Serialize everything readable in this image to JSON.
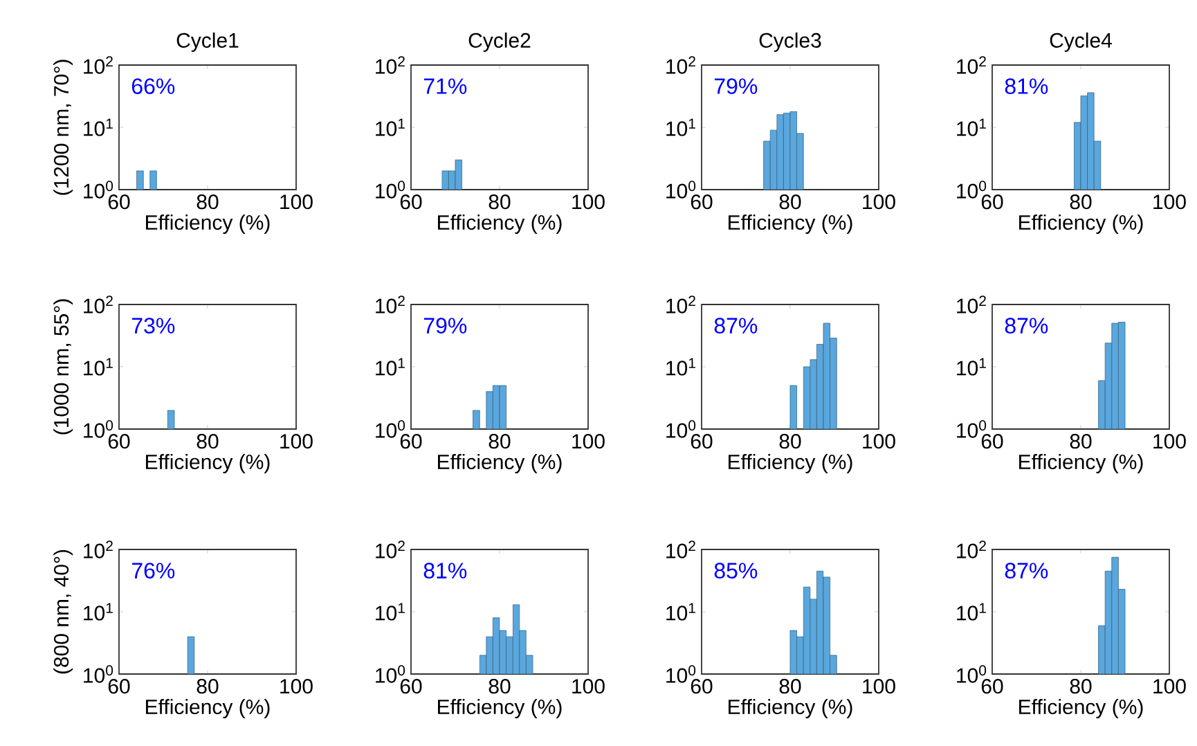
{
  "chart_data": [
    {
      "type": "histogram",
      "title": "Cycle1",
      "xlabel": "Efficiency (%)",
      "ylabel": "(1200 nm, 70°)",
      "annotations": [
        "66%"
      ],
      "bins": [
        64,
        65.5,
        67,
        68.5
      ],
      "values": [
        2,
        null,
        2
      ],
      "color": "#5aa7dd",
      "xlim": [
        60,
        100
      ],
      "xticks": [
        60,
        80,
        100
      ],
      "ylim": [
        1,
        100
      ],
      "yticks": [
        {
          "value": 1,
          "label": "10$^{0}$"
        },
        {
          "value": 10,
          "label": "10$^{1}$"
        },
        {
          "value": 100,
          "label": "10$^{2}$"
        }
      ],
      "log": true
    },
    {
      "type": "histogram",
      "title": "Cycle2",
      "xlabel": "Efficiency (%)",
      "annotations": [
        "71%"
      ],
      "bins": [
        67,
        68.5,
        70,
        71.5
      ],
      "values": [
        2,
        2,
        3
      ],
      "color": "#5aa7dd",
      "xlim": [
        60,
        100
      ],
      "xticks": [
        60,
        80,
        100
      ],
      "ylim": [
        1,
        100
      ],
      "yticks": [
        {
          "value": 1,
          "label": "10$^{0}$"
        },
        {
          "value": 10,
          "label": "10$^{1}$"
        },
        {
          "value": 100,
          "label": "10$^{2}$"
        }
      ],
      "log": true
    },
    {
      "type": "histogram",
      "title": "Cycle3",
      "xlabel": "Efficiency (%)",
      "annotations": [
        "79%"
      ],
      "bins": [
        74,
        75.5,
        77,
        78.5,
        80,
        81.5,
        83
      ],
      "values": [
        6,
        9,
        16,
        17,
        18,
        8
      ],
      "color": "#5aa7dd",
      "xlim": [
        60,
        100
      ],
      "xticks": [
        60,
        80,
        100
      ],
      "ylim": [
        1,
        100
      ],
      "yticks": [
        {
          "value": 1,
          "label": "10$^{0}$"
        },
        {
          "value": 10,
          "label": "10$^{1}$"
        },
        {
          "value": 100,
          "label": "10$^{2}$"
        }
      ],
      "log": true
    },
    {
      "type": "histogram",
      "title": "Cycle4",
      "xlabel": "Efficiency (%)",
      "annotations": [
        "81%"
      ],
      "bins": [
        78.5,
        80,
        81.5,
        83,
        84.5
      ],
      "values": [
        12,
        32,
        36,
        6
      ],
      "color": "#5aa7dd",
      "xlim": [
        60,
        100
      ],
      "xticks": [
        60,
        80,
        100
      ],
      "ylim": [
        1,
        100
      ],
      "yticks": [
        {
          "value": 1,
          "label": "10$^{0}$"
        },
        {
          "value": 10,
          "label": "10$^{1}$"
        },
        {
          "value": 100,
          "label": "10$^{2}$"
        }
      ],
      "log": true
    },
    {
      "type": "histogram",
      "xlabel": "Efficiency (%)",
      "ylabel": "(1000 nm, 55°)",
      "annotations": [
        "73%"
      ],
      "bins": [
        71,
        72.5
      ],
      "values": [
        2
      ],
      "color": "#5aa7dd",
      "xlim": [
        60,
        100
      ],
      "xticks": [
        60,
        80,
        100
      ],
      "ylim": [
        1,
        100
      ],
      "yticks": [
        {
          "value": 1,
          "label": "10$^{0}$"
        },
        {
          "value": 10,
          "label": "10$^{1}$"
        },
        {
          "value": 100,
          "label": "10$^{2}$"
        }
      ],
      "log": true
    },
    {
      "type": "histogram",
      "xlabel": "Efficiency (%)",
      "annotations": [
        "79%"
      ],
      "bins": [
        74,
        75.5,
        77,
        78.5,
        80,
        81.5
      ],
      "values": [
        2,
        null,
        4,
        5,
        5
      ],
      "color": "#5aa7dd",
      "xlim": [
        60,
        100
      ],
      "xticks": [
        60,
        80,
        100
      ],
      "ylim": [
        1,
        100
      ],
      "yticks": [
        {
          "value": 1,
          "label": "10$^{0}$"
        },
        {
          "value": 10,
          "label": "10$^{1}$"
        },
        {
          "value": 100,
          "label": "10$^{2}$"
        }
      ],
      "log": true
    },
    {
      "type": "histogram",
      "xlabel": "Efficiency (%)",
      "annotations": [
        "87%"
      ],
      "bins": [
        80,
        81.5,
        83,
        84.5,
        86,
        87.5,
        89,
        90.5
      ],
      "values": [
        5,
        null,
        10,
        13,
        23,
        50,
        29
      ],
      "color": "#5aa7dd",
      "xlim": [
        60,
        100
      ],
      "xticks": [
        60,
        80,
        100
      ],
      "ylim": [
        1,
        100
      ],
      "yticks": [
        {
          "value": 1,
          "label": "10$^{0}$"
        },
        {
          "value": 10,
          "label": "10$^{1}$"
        },
        {
          "value": 100,
          "label": "10$^{2}$"
        }
      ],
      "log": true
    },
    {
      "type": "histogram",
      "xlabel": "Efficiency (%)",
      "annotations": [
        "87%"
      ],
      "bins": [
        84,
        85.5,
        87,
        88.5,
        90
      ],
      "values": [
        6,
        24,
        50,
        52
      ],
      "color": "#5aa7dd",
      "xlim": [
        60,
        100
      ],
      "xticks": [
        60,
        80,
        100
      ],
      "ylim": [
        1,
        100
      ],
      "yticks": [
        {
          "value": 1,
          "label": "10$^{0}$"
        },
        {
          "value": 10,
          "label": "10$^{1}$"
        },
        {
          "value": 100,
          "label": "10$^{2}$"
        }
      ],
      "log": true
    },
    {
      "type": "histogram",
      "xlabel": "Efficiency (%)",
      "ylabel": "(800 nm, 40°)",
      "annotations": [
        "76%"
      ],
      "bins": [
        75.5,
        77
      ],
      "values": [
        4
      ],
      "color": "#5aa7dd",
      "xlim": [
        60,
        100
      ],
      "xticks": [
        60,
        80,
        100
      ],
      "ylim": [
        1,
        100
      ],
      "yticks": [
        {
          "value": 1,
          "label": "10$^{0}$"
        },
        {
          "value": 10,
          "label": "10$^{1}$"
        },
        {
          "value": 100,
          "label": "10$^{2}$"
        }
      ],
      "log": true
    },
    {
      "type": "histogram",
      "xlabel": "Efficiency (%)",
      "annotations": [
        "81%"
      ],
      "bins": [
        75.5,
        77,
        78.5,
        80,
        81.5,
        83,
        84.5,
        86,
        87.5
      ],
      "values": [
        2,
        4,
        8,
        5,
        4,
        13,
        5,
        2
      ],
      "color": "#5aa7dd",
      "xlim": [
        60,
        100
      ],
      "xticks": [
        60,
        80,
        100
      ],
      "ylim": [
        1,
        100
      ],
      "yticks": [
        {
          "value": 1,
          "label": "10$^{0}$"
        },
        {
          "value": 10,
          "label": "10$^{1}$"
        },
        {
          "value": 100,
          "label": "10$^{2}$"
        }
      ],
      "log": true
    },
    {
      "type": "histogram",
      "xlabel": "Efficiency (%)",
      "annotations": [
        "85%"
      ],
      "bins": [
        80,
        81.5,
        83,
        84.5,
        86,
        87.5,
        89,
        90.5
      ],
      "values": [
        5,
        4,
        25,
        16,
        45,
        36,
        2
      ],
      "color": "#5aa7dd",
      "xlim": [
        60,
        100
      ],
      "xticks": [
        60,
        80,
        100
      ],
      "ylim": [
        1,
        100
      ],
      "yticks": [
        {
          "value": 1,
          "label": "10$^{0}$"
        },
        {
          "value": 10,
          "label": "10$^{1}$"
        },
        {
          "value": 100,
          "label": "10$^{2}$"
        }
      ],
      "log": true
    },
    {
      "type": "histogram",
      "xlabel": "Efficiency (%)",
      "annotations": [
        "87%"
      ],
      "bins": [
        84,
        85.5,
        87,
        88.5,
        90
      ],
      "values": [
        6,
        45,
        75,
        23
      ],
      "color": "#5aa7dd",
      "xlim": [
        60,
        100
      ],
      "xticks": [
        60,
        80,
        100
      ],
      "ylim": [
        1,
        100
      ],
      "yticks": [
        {
          "value": 1,
          "label": "10$^{0}$"
        },
        {
          "value": 10,
          "label": "10$^{1}$"
        },
        {
          "value": 100,
          "label": "10$^{2}$"
        }
      ],
      "log": true
    }
  ]
}
